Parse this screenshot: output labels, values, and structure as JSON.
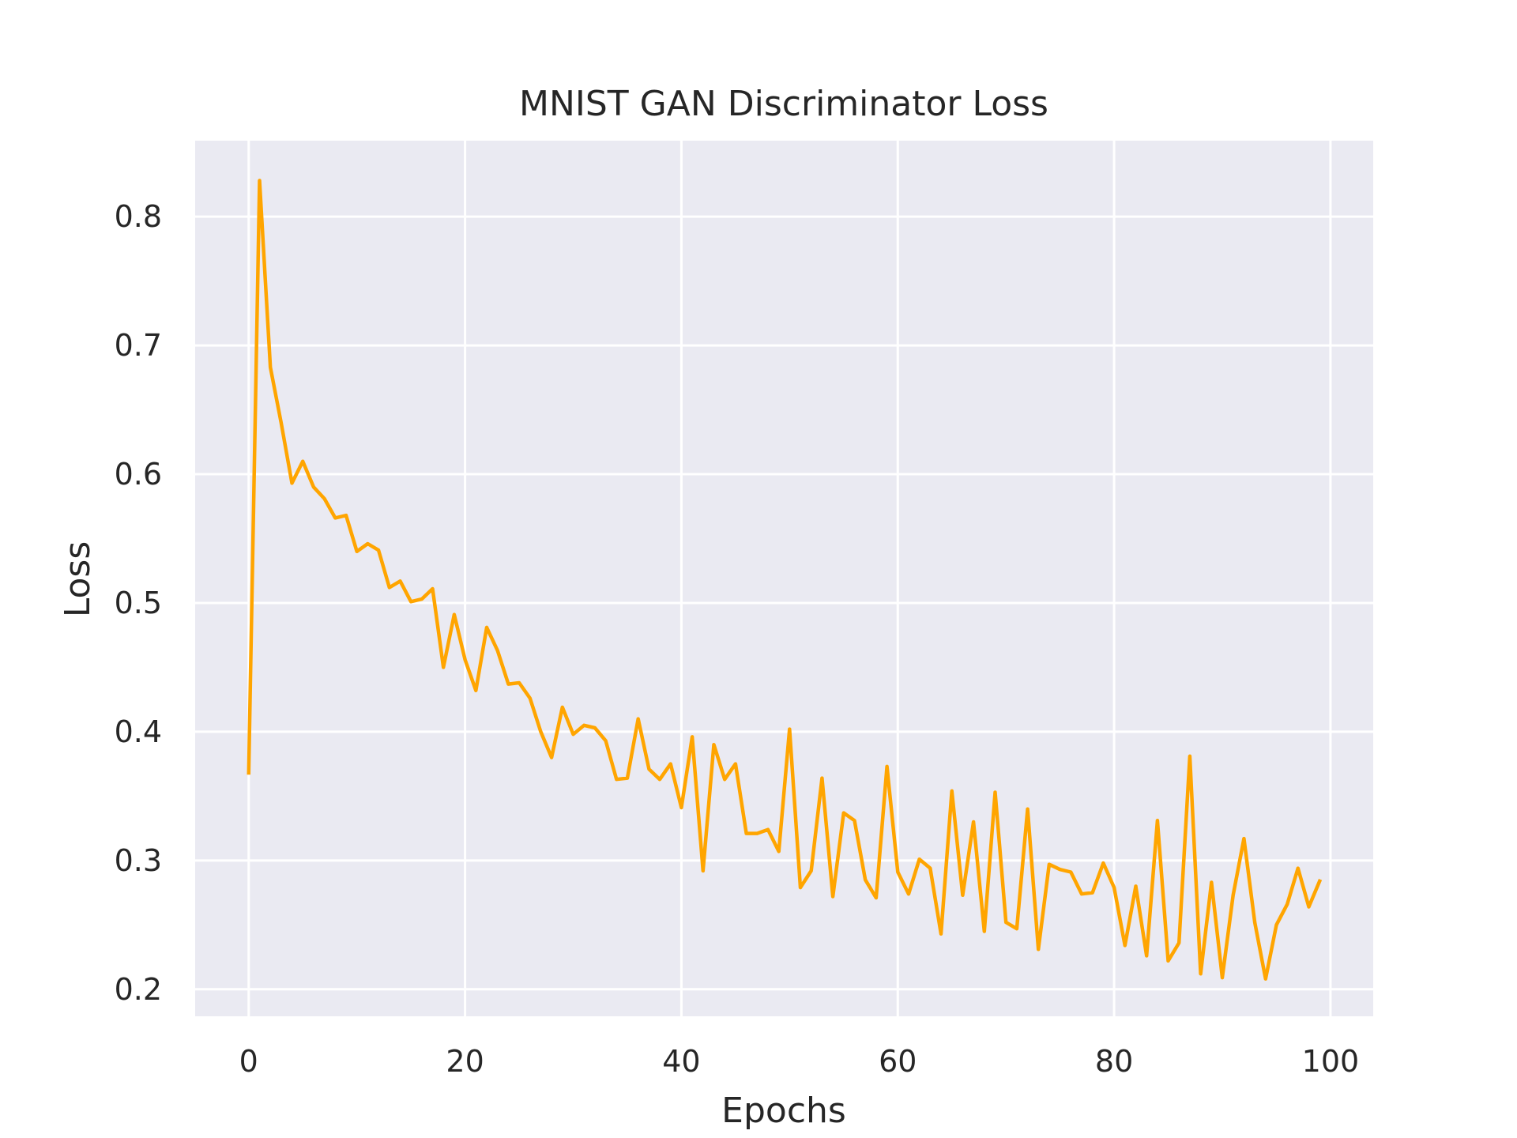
{
  "chart_data": {
    "type": "line",
    "title": "MNIST GAN Discriminator Loss",
    "xlabel": "Epochs",
    "ylabel": "Loss",
    "xlim": [
      -4.95,
      103.95
    ],
    "ylim": [
      0.179,
      0.859
    ],
    "xticks": [
      0,
      20,
      40,
      60,
      80,
      100
    ],
    "yticks": [
      0.2,
      0.3,
      0.4,
      0.5,
      0.6,
      0.7,
      0.8
    ],
    "xtick_labels": [
      "0",
      "20",
      "40",
      "60",
      "80",
      "100"
    ],
    "ytick_labels": [
      "0.2",
      "0.3",
      "0.4",
      "0.5",
      "0.6",
      "0.7",
      "0.8"
    ],
    "grid": true,
    "background": "#eaeaf2",
    "grid_color": "#ffffff",
    "series": [
      {
        "color": "#ffa500",
        "x": [
          0,
          1,
          2,
          3,
          4,
          5,
          6,
          7,
          8,
          9,
          10,
          11,
          12,
          13,
          14,
          15,
          16,
          17,
          18,
          19,
          20,
          21,
          22,
          23,
          24,
          25,
          26,
          27,
          28,
          29,
          30,
          31,
          32,
          33,
          34,
          35,
          36,
          37,
          38,
          39,
          40,
          41,
          42,
          43,
          44,
          45,
          46,
          47,
          48,
          49,
          50,
          51,
          52,
          53,
          54,
          55,
          56,
          57,
          58,
          59,
          60,
          61,
          62,
          63,
          64,
          65,
          66,
          67,
          68,
          69,
          70,
          71,
          72,
          73,
          74,
          75,
          76,
          77,
          78,
          79,
          80,
          81,
          82,
          83,
          84,
          85,
          86,
          87,
          88,
          89,
          90,
          91,
          92,
          93,
          94,
          95,
          96,
          97,
          98,
          99
        ],
        "values": [
          0.368,
          0.828,
          0.683,
          0.64,
          0.593,
          0.61,
          0.59,
          0.581,
          0.566,
          0.568,
          0.54,
          0.546,
          0.541,
          0.512,
          0.517,
          0.501,
          0.503,
          0.511,
          0.45,
          0.491,
          0.456,
          0.432,
          0.481,
          0.463,
          0.437,
          0.438,
          0.426,
          0.4,
          0.38,
          0.419,
          0.398,
          0.405,
          0.403,
          0.393,
          0.363,
          0.364,
          0.41,
          0.371,
          0.363,
          0.375,
          0.341,
          0.396,
          0.292,
          0.39,
          0.363,
          0.375,
          0.321,
          0.321,
          0.324,
          0.307,
          0.402,
          0.279,
          0.292,
          0.364,
          0.272,
          0.337,
          0.331,
          0.285,
          0.271,
          0.373,
          0.291,
          0.274,
          0.301,
          0.294,
          0.243,
          0.354,
          0.273,
          0.33,
          0.245,
          0.353,
          0.252,
          0.247,
          0.34,
          0.231,
          0.297,
          0.293,
          0.291,
          0.274,
          0.275,
          0.298,
          0.279,
          0.234,
          0.28,
          0.226,
          0.331,
          0.222,
          0.236,
          0.381,
          0.212,
          0.283,
          0.209,
          0.273,
          0.317,
          0.252,
          0.208,
          0.25,
          0.266,
          0.294,
          0.264,
          0.284
        ]
      }
    ]
  }
}
